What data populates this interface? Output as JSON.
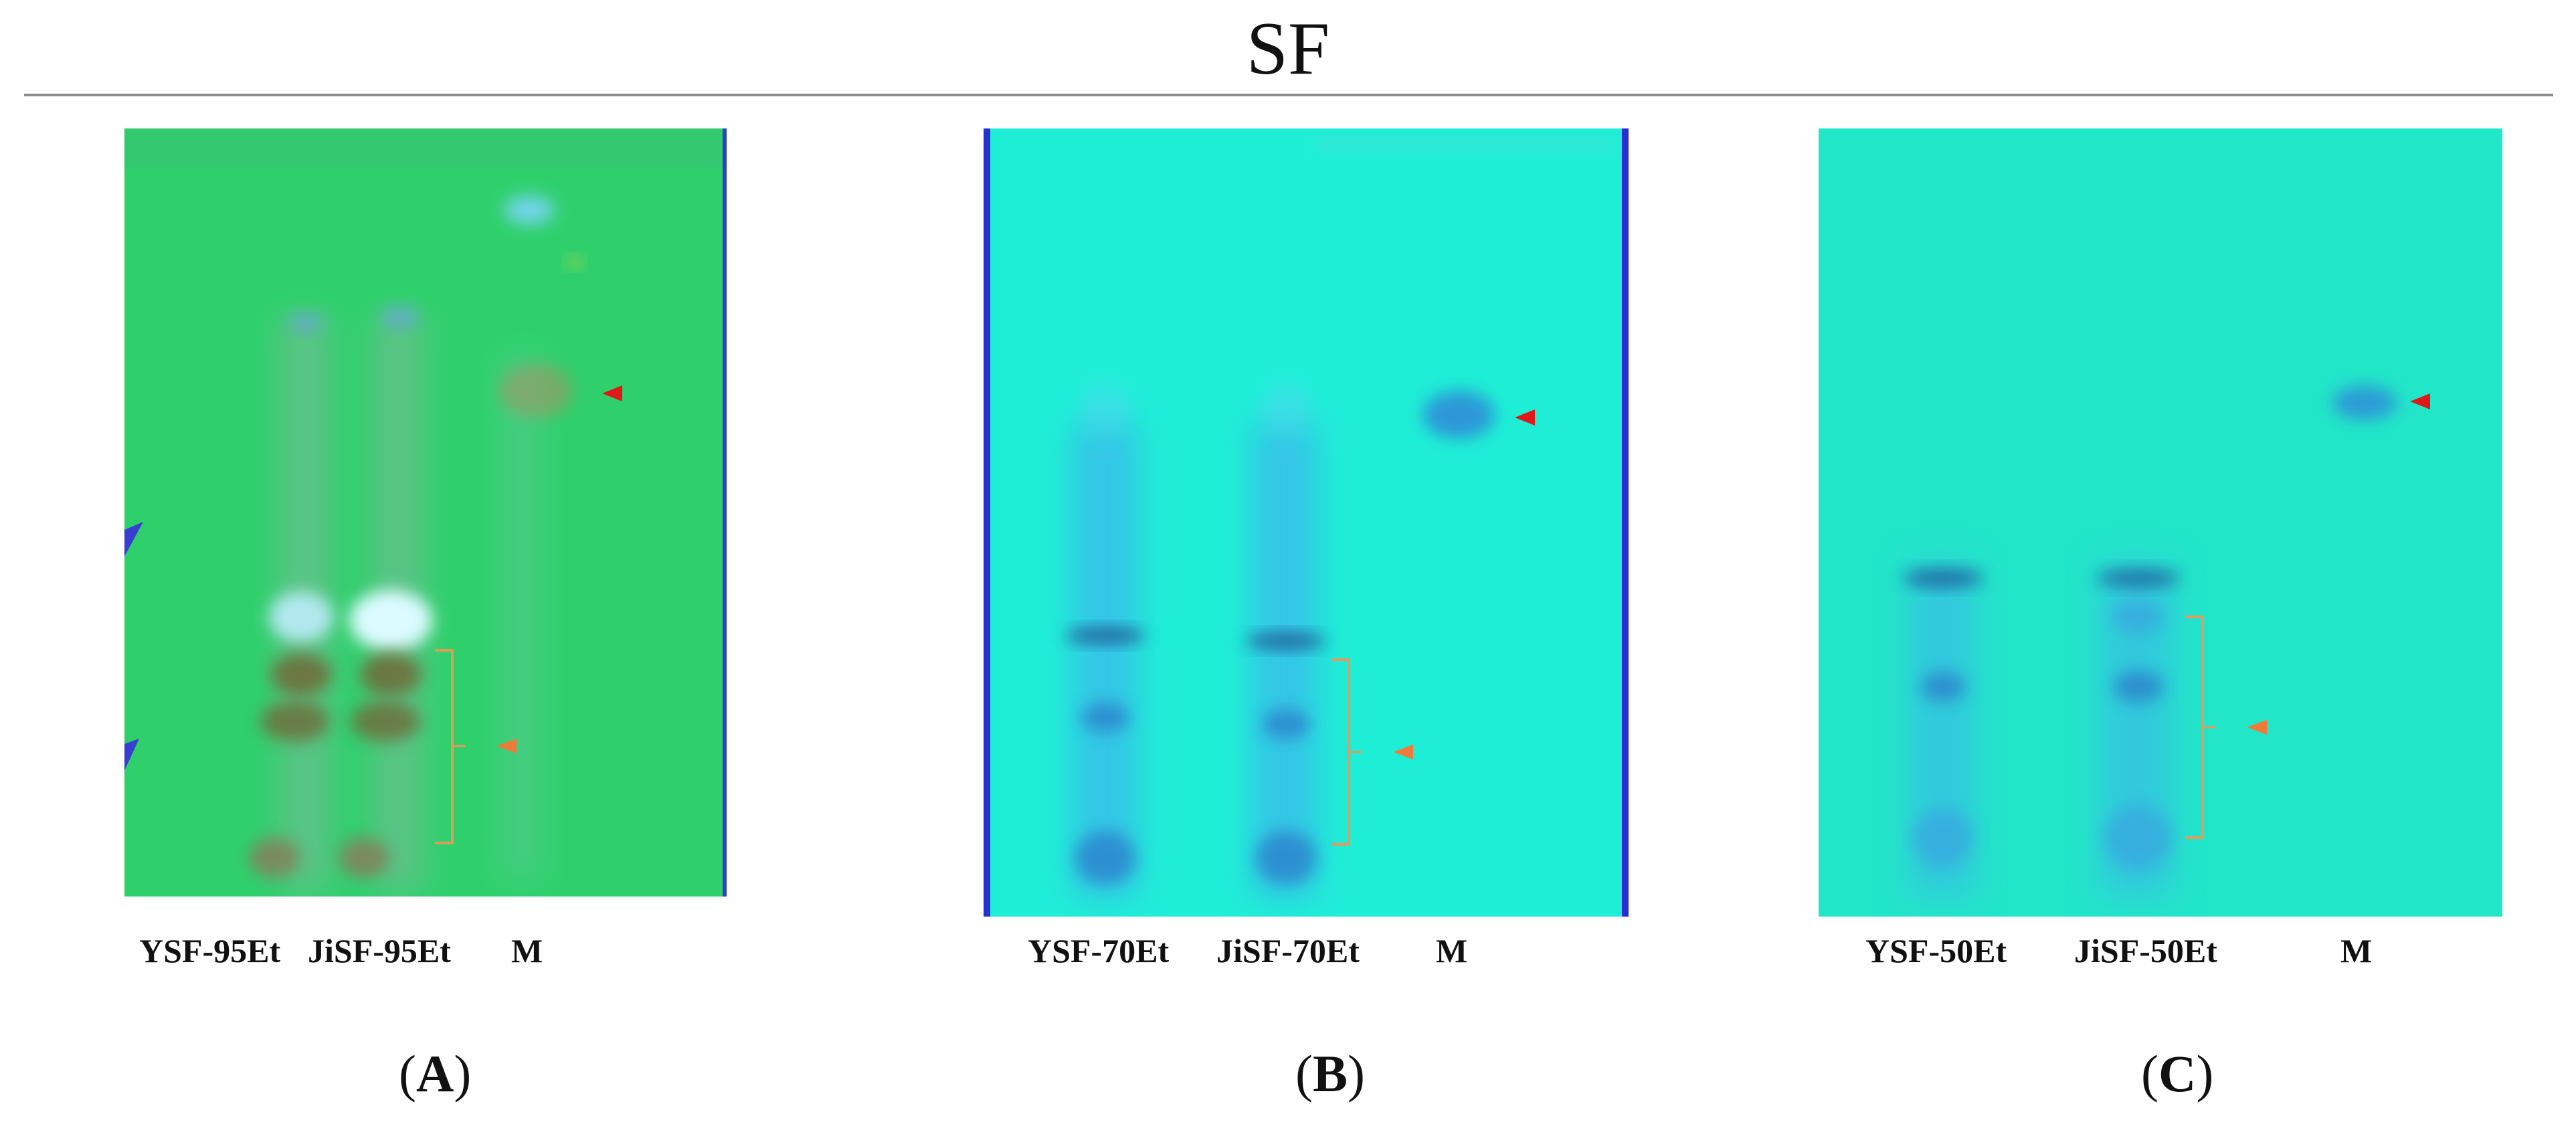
{
  "title": "SF",
  "panels": [
    {
      "id": "A",
      "caption_open": "(",
      "caption_letter": "A",
      "caption_close": ")",
      "lanes": [
        "YSF-95Et",
        "JiSF-95Et",
        "M"
      ],
      "plate_color": "#2cd16a",
      "edge_color": "#3040c8"
    },
    {
      "id": "B",
      "caption_open": "(",
      "caption_letter": "B",
      "caption_close": ")",
      "lanes": [
        "YSF-70Et",
        "JiSF-70Et",
        "M"
      ],
      "plate_color": "#1ff0d6",
      "edge_color": "#2a2fd0"
    },
    {
      "id": "C",
      "caption_open": "(",
      "caption_letter": "C",
      "caption_close": ")",
      "lanes": [
        "YSF-50Et",
        "JiSF-50Et",
        "M"
      ],
      "plate_color": "#22e6c8",
      "edge_color": ""
    }
  ],
  "marker_colors": {
    "red_arrow": "#e01818",
    "orange_arrow": "#f07a3a",
    "bracket": "#e39a5a"
  }
}
